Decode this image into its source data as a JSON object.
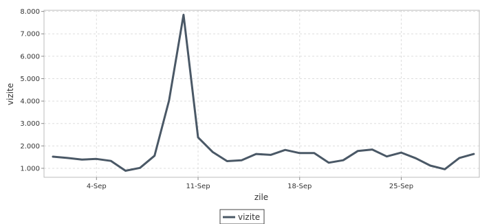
{
  "chart_data": {
    "type": "line",
    "title": "",
    "xlabel": "zile",
    "ylabel": "vizite",
    "x_ticks": [
      "4-Sep",
      "11-Sep",
      "18-Sep",
      "25-Sep"
    ],
    "y_ticks": [
      "1.000",
      "2.000",
      "3.000",
      "4.000",
      "5.000",
      "6.000",
      "7.000",
      "8.000"
    ],
    "ylim": [
      600,
      8050
    ],
    "grid": true,
    "legend_position": "bottom-center",
    "x": [
      "1-Sep",
      "2-Sep",
      "3-Sep",
      "4-Sep",
      "5-Sep",
      "6-Sep",
      "7-Sep",
      "8-Sep",
      "9-Sep",
      "10-Sep",
      "11-Sep",
      "12-Sep",
      "13-Sep",
      "14-Sep",
      "15-Sep",
      "16-Sep",
      "17-Sep",
      "18-Sep",
      "19-Sep",
      "20-Sep",
      "21-Sep",
      "22-Sep",
      "23-Sep",
      "24-Sep",
      "25-Sep",
      "26-Sep",
      "27-Sep",
      "28-Sep",
      "29-Sep",
      "30-Sep"
    ],
    "series": [
      {
        "name": "vizite",
        "color": "#4a5866",
        "values": [
          1520,
          1460,
          1390,
          1420,
          1330,
          890,
          1020,
          1560,
          4020,
          7850,
          2380,
          1730,
          1320,
          1360,
          1640,
          1600,
          1820,
          1680,
          1680,
          1250,
          1360,
          1770,
          1840,
          1530,
          1700,
          1450,
          1120,
          960,
          1460,
          1640
        ]
      }
    ]
  }
}
